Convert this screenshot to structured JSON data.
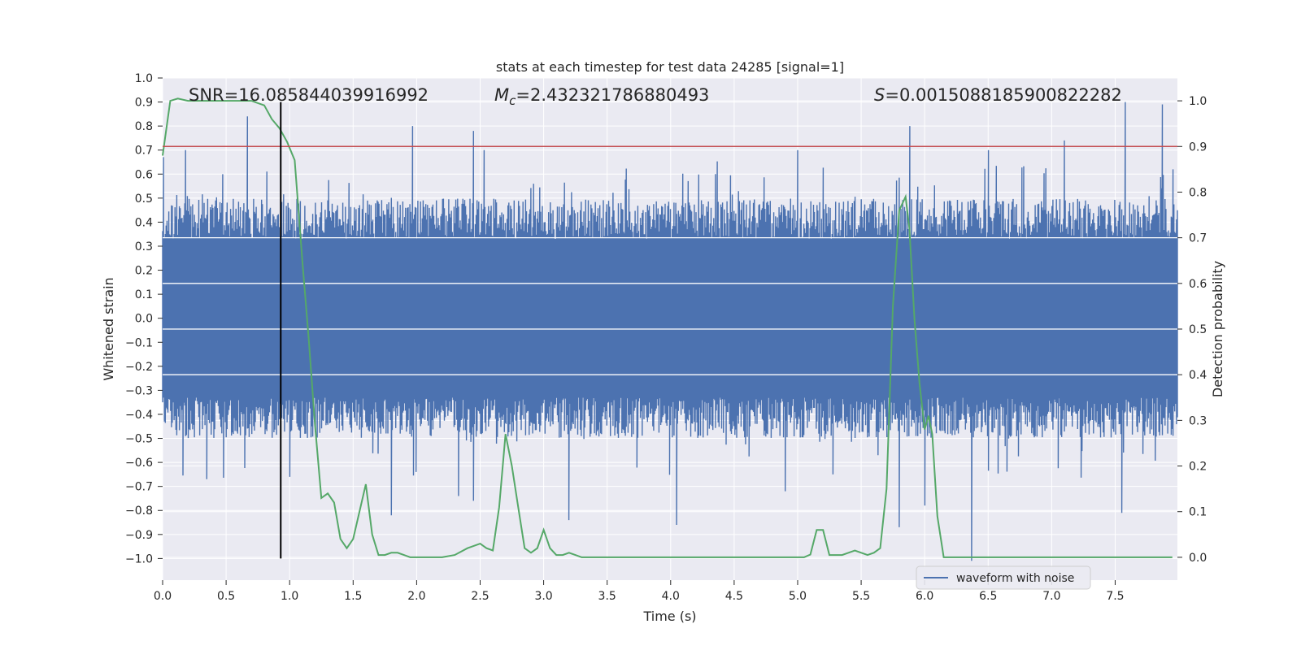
{
  "chart_data": {
    "type": "line",
    "title": "stats at each timestep for test data 24285 [signal=1]",
    "xlabel": "Time (s)",
    "ylabel_left": "Whitened strain",
    "ylabel_right": "Detection probability",
    "xlim": [
      0.0,
      7.99
    ],
    "ylim_left": [
      -1.09,
      1.0
    ],
    "ylim_right": [
      -0.05,
      1.05
    ],
    "x_ticks": [
      0.0,
      0.5,
      1.0,
      1.5,
      2.0,
      2.5,
      3.0,
      3.5,
      4.0,
      4.5,
      5.0,
      5.5,
      6.0,
      6.5,
      7.0,
      7.5
    ],
    "x_tick_labels": [
      "0.0",
      "0.5",
      "1.0",
      "1.5",
      "2.0",
      "2.5",
      "3.0",
      "3.5",
      "4.0",
      "4.5",
      "5.0",
      "5.5",
      "6.0",
      "6.5",
      "7.0",
      "7.5"
    ],
    "y_left_ticks": [
      1.0,
      0.9,
      0.8,
      0.7,
      0.6,
      0.5,
      0.4,
      0.3,
      0.2,
      0.1,
      0.0,
      -0.1,
      -0.2,
      -0.3,
      -0.4,
      -0.5,
      -0.6,
      -0.7,
      -0.8,
      -0.9,
      -1.0
    ],
    "y_left_tick_labels": [
      "1.0",
      "0.9",
      "0.8",
      "0.7",
      "0.6",
      "0.5",
      "0.4",
      "0.3",
      "0.2",
      "0.1",
      "0.0",
      "−0.1",
      "−0.2",
      "−0.3",
      "−0.4",
      "−0.5",
      "−0.6",
      "−0.7",
      "−0.8",
      "−0.9",
      "−1.0"
    ],
    "y_right_ticks": [
      1.0,
      0.9,
      0.8,
      0.7,
      0.6,
      0.5,
      0.4,
      0.3,
      0.2,
      0.1,
      0.0
    ],
    "y_right_tick_labels": [
      "1.0",
      "0.9",
      "0.8",
      "0.7",
      "0.6",
      "0.5",
      "0.4",
      "0.3",
      "0.2",
      "0.1",
      "0.0"
    ],
    "annotations": {
      "snr": "SNR=16.085844039916992",
      "mc_symbol": "M",
      "mc_subscript": "c",
      "mc_value": "=2.432321786880493",
      "s_symbol": "S",
      "s_value": "=0.0015088185900822282"
    },
    "threshold_line": {
      "axis": "right",
      "y": 0.9,
      "color": "#c44e52"
    },
    "marker_line": {
      "axis": "left",
      "x": 0.93,
      "y_start": -1.0,
      "y_end": 0.9,
      "color": "#000000"
    },
    "waveform": {
      "name": "waveform with noise",
      "color": "#4c72b0",
      "core_amplitude": 0.33,
      "typical_peak": 0.45,
      "peaks_positive": [
        {
          "x": 0.67,
          "y": 0.84
        },
        {
          "x": 1.97,
          "y": 0.8
        },
        {
          "x": 2.45,
          "y": 0.78
        },
        {
          "x": 2.53,
          "y": 0.7
        },
        {
          "x": 5.88,
          "y": 0.8
        },
        {
          "x": 6.5,
          "y": 0.7
        },
        {
          "x": 7.1,
          "y": 0.74
        },
        {
          "x": 7.58,
          "y": 0.9
        },
        {
          "x": 7.87,
          "y": 0.89
        },
        {
          "x": 0.18,
          "y": 0.7
        },
        {
          "x": 5.0,
          "y": 0.7
        },
        {
          "x": 4.35,
          "y": 0.6
        }
      ],
      "peaks_negative": [
        {
          "x": 0.35,
          "y": -0.67
        },
        {
          "x": 1.8,
          "y": -0.82
        },
        {
          "x": 2.33,
          "y": -0.74
        },
        {
          "x": 2.45,
          "y": -0.76
        },
        {
          "x": 3.2,
          "y": -0.84
        },
        {
          "x": 4.05,
          "y": -0.86
        },
        {
          "x": 5.8,
          "y": -0.87
        },
        {
          "x": 6.0,
          "y": -0.78
        },
        {
          "x": 6.37,
          "y": -1.01
        },
        {
          "x": 7.55,
          "y": -0.81
        },
        {
          "x": 1.0,
          "y": -0.66
        },
        {
          "x": 4.9,
          "y": -0.72
        }
      ]
    },
    "detection_probability": {
      "name": "detection probability",
      "color": "#55a868",
      "x": [
        0.0,
        0.06,
        0.12,
        0.2,
        0.3,
        0.4,
        0.5,
        0.6,
        0.7,
        0.8,
        0.86,
        0.92,
        0.98,
        1.04,
        1.1,
        1.15,
        1.2,
        1.25,
        1.3,
        1.35,
        1.4,
        1.45,
        1.5,
        1.55,
        1.6,
        1.65,
        1.7,
        1.75,
        1.8,
        1.85,
        1.9,
        1.95,
        2.0,
        2.1,
        2.2,
        2.3,
        2.4,
        2.5,
        2.55,
        2.6,
        2.65,
        2.7,
        2.75,
        2.8,
        2.85,
        2.9,
        2.95,
        3.0,
        3.05,
        3.1,
        3.15,
        3.2,
        3.25,
        3.3,
        3.4,
        3.5,
        3.6,
        3.7,
        3.8,
        3.9,
        4.0,
        4.1,
        4.2,
        4.3,
        4.4,
        4.5,
        4.6,
        4.7,
        4.8,
        4.9,
        5.0,
        5.05,
        5.1,
        5.15,
        5.2,
        5.25,
        5.3,
        5.35,
        5.4,
        5.45,
        5.5,
        5.55,
        5.6,
        5.65,
        5.7,
        5.75,
        5.8,
        5.85,
        5.88,
        5.92,
        5.96,
        6.0,
        6.03,
        6.06,
        6.1,
        6.15,
        6.2,
        6.25,
        6.3,
        6.4,
        6.5,
        6.6,
        6.7,
        6.8,
        6.9,
        7.0,
        7.1,
        7.2,
        7.3,
        7.4,
        7.5,
        7.6,
        7.7,
        7.8,
        7.9,
        7.95
      ],
      "y": [
        0.88,
        1.0,
        1.005,
        1.0,
        1.0,
        1.0,
        1.0,
        1.0,
        1.0,
        0.99,
        0.96,
        0.94,
        0.91,
        0.87,
        0.65,
        0.48,
        0.29,
        0.13,
        0.14,
        0.12,
        0.04,
        0.02,
        0.04,
        0.1,
        0.16,
        0.05,
        0.005,
        0.005,
        0.01,
        0.01,
        0.005,
        0.0,
        0.0,
        0.0,
        0.0,
        0.005,
        0.02,
        0.03,
        0.02,
        0.015,
        0.11,
        0.27,
        0.2,
        0.11,
        0.02,
        0.01,
        0.02,
        0.06,
        0.02,
        0.005,
        0.005,
        0.01,
        0.005,
        0.0,
        0.0,
        0.0,
        0.0,
        0.0,
        0.0,
        0.0,
        0.0,
        0.0,
        0.0,
        0.0,
        0.0,
        0.0,
        0.0,
        0.0,
        0.0,
        0.0,
        0.0,
        0.0,
        0.006,
        0.06,
        0.06,
        0.005,
        0.005,
        0.005,
        0.01,
        0.015,
        0.01,
        0.005,
        0.01,
        0.02,
        0.15,
        0.55,
        0.76,
        0.79,
        0.72,
        0.52,
        0.38,
        0.28,
        0.31,
        0.27,
        0.09,
        0.0,
        0.0,
        0.0,
        0.0,
        0.0,
        0.0,
        0.0,
        0.0,
        0.0,
        0.0,
        0.0,
        0.0,
        0.0,
        0.0,
        0.0,
        0.0,
        0.0,
        0.0,
        0.0,
        0.0,
        0.0
      ]
    },
    "legend": {
      "location": "bottom-right",
      "entries": [
        "waveform with noise"
      ]
    },
    "grid": true,
    "colors": {
      "background": "#eaeaf2",
      "grid": "#ffffff",
      "text": "#262626"
    }
  }
}
